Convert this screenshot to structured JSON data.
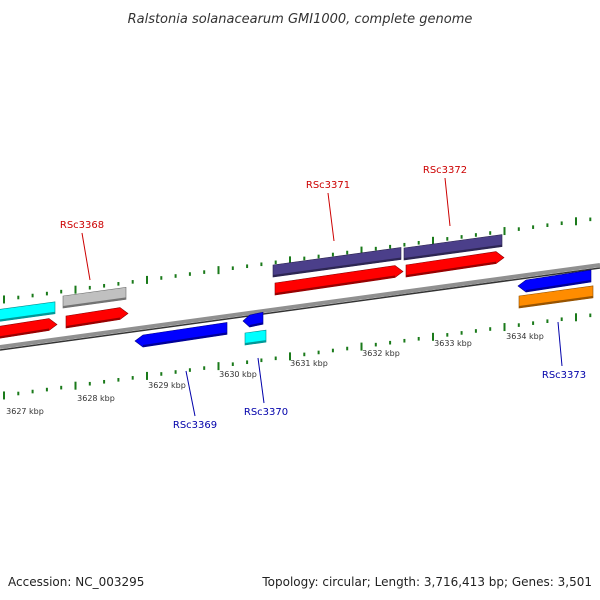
{
  "header": {
    "title": "Ralstonia solanacearum GMI1000, complete genome"
  },
  "footer": {
    "accession": "Accession: NC_003295",
    "summary": "Topology: circular; Length: 3,716,413 bp; Genes: 3,501"
  },
  "ruler": {
    "ticks": [
      "3627 kbp",
      "3628 kbp",
      "3629 kbp",
      "3630 kbp",
      "3631 kbp",
      "3632 kbp",
      "3633 kbp",
      "3634 kbp"
    ]
  },
  "gene_labels": {
    "forward": [
      "RSc3368",
      "RSc3371",
      "RSc3372"
    ],
    "reverse": [
      "RSc3369",
      "RSc3370",
      "RSc3373"
    ]
  },
  "colors": {
    "forward_label": "#cc0000",
    "reverse_label": "#0000aa",
    "tick_mark": "#1a7a1a",
    "backbone": "#808080",
    "red": "#ff0000",
    "blue": "#0000ff",
    "cyan": "#00ffff",
    "gray": "#c0c0c0",
    "slate": "#4b3f8a",
    "orange": "#ff8c00"
  }
}
